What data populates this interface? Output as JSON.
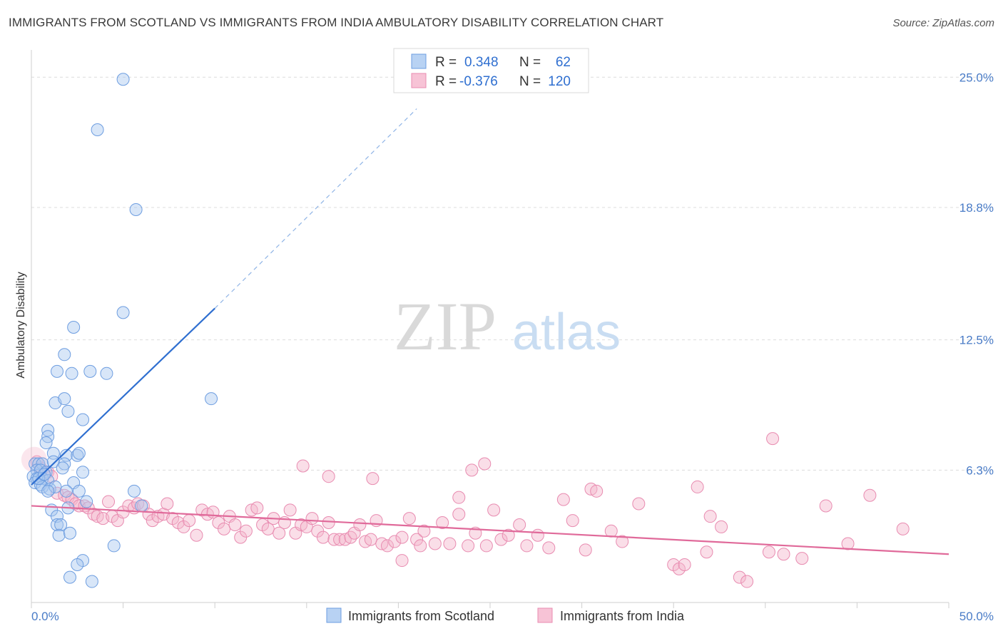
{
  "title": "IMMIGRANTS FROM SCOTLAND VS IMMIGRANTS FROM INDIA AMBULATORY DISABILITY CORRELATION CHART",
  "source": "Source: ZipAtlas.com",
  "watermark": {
    "zip": "ZIP",
    "atlas": "atlas"
  },
  "colors": {
    "scotland": "#5b8fd9",
    "scotland_fill": "#a9c8f0",
    "india": "#e06a9a",
    "india_fill": "#f4b6cc",
    "tick_text": "#4a7cc7"
  },
  "legend": {
    "r_label": "R =",
    "n_label": "N =",
    "scotland": {
      "r": "0.348",
      "n": "62"
    },
    "india": {
      "r": "-0.376",
      "n": "120"
    }
  },
  "chart_data": {
    "type": "scatter",
    "title": "IMMIGRANTS FROM SCOTLAND VS IMMIGRANTS FROM INDIA AMBULATORY DISABILITY CORRELATION CHART",
    "xlabel": "",
    "ylabel": "Ambulatory Disability",
    "xlim": [
      0,
      50
    ],
    "ylim": [
      0,
      26.3
    ],
    "x_tick_labels": [
      "0.0%",
      "50.0%"
    ],
    "y_ticks": [
      6.3,
      12.5,
      18.8,
      25.0
    ],
    "y_tick_labels": [
      "6.3%",
      "12.5%",
      "18.8%",
      "25.0%"
    ],
    "grid": true,
    "legend_position": "top-center",
    "series": [
      {
        "name": "Immigrants from Scotland",
        "color": "#5b8fd9",
        "trend": {
          "x": [
            0.0,
            10.0
          ],
          "y": [
            5.6,
            14.0
          ],
          "dashed_to": [
            21.0,
            23.5
          ]
        },
        "points": [
          [
            5.0,
            24.9
          ],
          [
            3.6,
            22.5
          ],
          [
            5.7,
            18.7
          ],
          [
            5.0,
            13.8
          ],
          [
            2.3,
            13.1
          ],
          [
            1.8,
            11.8
          ],
          [
            1.4,
            11.0
          ],
          [
            2.2,
            10.9
          ],
          [
            3.2,
            11.0
          ],
          [
            4.1,
            10.9
          ],
          [
            9.8,
            9.7
          ],
          [
            1.3,
            9.5
          ],
          [
            1.8,
            9.7
          ],
          [
            2.0,
            9.1
          ],
          [
            2.8,
            8.7
          ],
          [
            0.9,
            8.2
          ],
          [
            0.9,
            7.9
          ],
          [
            0.8,
            7.6
          ],
          [
            1.2,
            7.1
          ],
          [
            1.9,
            7.0
          ],
          [
            2.5,
            7.0
          ],
          [
            2.6,
            7.1
          ],
          [
            0.2,
            6.6
          ],
          [
            0.4,
            6.6
          ],
          [
            0.6,
            6.6
          ],
          [
            1.2,
            6.7
          ],
          [
            1.8,
            6.6
          ],
          [
            1.7,
            6.4
          ],
          [
            0.3,
            6.3
          ],
          [
            0.5,
            6.3
          ],
          [
            0.8,
            6.2
          ],
          [
            2.8,
            6.2
          ],
          [
            0.1,
            6.0
          ],
          [
            0.3,
            5.9
          ],
          [
            0.6,
            5.9
          ],
          [
            0.9,
            5.8
          ],
          [
            0.2,
            5.7
          ],
          [
            0.5,
            5.6
          ],
          [
            2.3,
            5.7
          ],
          [
            0.6,
            5.5
          ],
          [
            1.0,
            5.4
          ],
          [
            1.3,
            5.5
          ],
          [
            0.9,
            5.3
          ],
          [
            1.9,
            5.3
          ],
          [
            2.6,
            5.3
          ],
          [
            5.6,
            5.3
          ],
          [
            3.0,
            4.8
          ],
          [
            2.0,
            4.5
          ],
          [
            1.1,
            4.4
          ],
          [
            6.0,
            4.6
          ],
          [
            1.4,
            4.1
          ],
          [
            1.4,
            3.7
          ],
          [
            1.6,
            3.7
          ],
          [
            1.5,
            3.2
          ],
          [
            2.1,
            3.3
          ],
          [
            4.5,
            2.7
          ],
          [
            2.8,
            2.0
          ],
          [
            2.5,
            1.8
          ],
          [
            2.1,
            1.2
          ],
          [
            3.3,
            1.0
          ],
          [
            0.4,
            5.9
          ],
          [
            0.7,
            6.1
          ]
        ]
      },
      {
        "name": "Immigrants from India",
        "color": "#e06a9a",
        "trend": {
          "x": [
            0.0,
            50.0
          ],
          "y": [
            4.6,
            2.3
          ]
        },
        "points": [
          [
            0.3,
            6.7
          ],
          [
            0.5,
            6.4
          ],
          [
            0.9,
            6.2
          ],
          [
            1.1,
            6.0
          ],
          [
            1.4,
            5.2
          ],
          [
            1.8,
            5.1
          ],
          [
            2.0,
            5.0
          ],
          [
            2.2,
            4.9
          ],
          [
            2.4,
            4.7
          ],
          [
            2.6,
            4.6
          ],
          [
            2.9,
            4.6
          ],
          [
            3.1,
            4.5
          ],
          [
            3.4,
            4.2
          ],
          [
            3.6,
            4.1
          ],
          [
            3.9,
            4.0
          ],
          [
            4.2,
            4.8
          ],
          [
            4.4,
            4.1
          ],
          [
            4.7,
            3.9
          ],
          [
            5.0,
            4.3
          ],
          [
            5.3,
            4.6
          ],
          [
            5.6,
            4.5
          ],
          [
            5.8,
            4.7
          ],
          [
            6.1,
            4.6
          ],
          [
            6.4,
            4.2
          ],
          [
            6.6,
            3.9
          ],
          [
            6.9,
            4.1
          ],
          [
            7.2,
            4.2
          ],
          [
            7.4,
            4.7
          ],
          [
            7.7,
            4.0
          ],
          [
            8.0,
            3.8
          ],
          [
            8.3,
            3.6
          ],
          [
            8.6,
            3.9
          ],
          [
            9.0,
            3.2
          ],
          [
            9.3,
            4.4
          ],
          [
            9.6,
            4.2
          ],
          [
            9.9,
            4.3
          ],
          [
            10.2,
            3.8
          ],
          [
            10.5,
            3.5
          ],
          [
            10.8,
            4.1
          ],
          [
            11.1,
            3.7
          ],
          [
            11.4,
            3.1
          ],
          [
            11.7,
            3.4
          ],
          [
            12.0,
            4.4
          ],
          [
            12.3,
            4.5
          ],
          [
            12.6,
            3.7
          ],
          [
            12.9,
            3.5
          ],
          [
            13.2,
            4.0
          ],
          [
            13.5,
            3.3
          ],
          [
            13.8,
            3.8
          ],
          [
            14.1,
            4.4
          ],
          [
            14.4,
            3.3
          ],
          [
            14.7,
            3.7
          ],
          [
            15.0,
            3.6
          ],
          [
            15.3,
            4.0
          ],
          [
            15.6,
            3.4
          ],
          [
            15.9,
            3.1
          ],
          [
            16.2,
            3.8
          ],
          [
            16.5,
            3.0
          ],
          [
            16.8,
            3.0
          ],
          [
            17.1,
            3.0
          ],
          [
            17.4,
            3.1
          ],
          [
            17.6,
            3.3
          ],
          [
            17.9,
            3.7
          ],
          [
            18.2,
            2.9
          ],
          [
            18.5,
            3.0
          ],
          [
            18.8,
            3.9
          ],
          [
            19.1,
            2.8
          ],
          [
            19.4,
            2.7
          ],
          [
            19.8,
            2.9
          ],
          [
            20.2,
            3.1
          ],
          [
            20.6,
            4.0
          ],
          [
            21.0,
            3.0
          ],
          [
            21.4,
            3.4
          ],
          [
            22.0,
            2.8
          ],
          [
            22.4,
            3.8
          ],
          [
            22.8,
            2.8
          ],
          [
            23.3,
            4.2
          ],
          [
            23.8,
            2.7
          ],
          [
            24.2,
            3.3
          ],
          [
            24.8,
            2.7
          ],
          [
            25.2,
            4.4
          ],
          [
            25.6,
            3.0
          ],
          [
            26.0,
            3.2
          ],
          [
            26.6,
            3.7
          ],
          [
            27.0,
            2.7
          ],
          [
            27.6,
            3.2
          ],
          [
            28.2,
            2.6
          ],
          [
            14.8,
            6.5
          ],
          [
            16.2,
            6.0
          ],
          [
            18.6,
            5.9
          ],
          [
            24.0,
            6.3
          ],
          [
            24.7,
            6.6
          ],
          [
            23.3,
            5.0
          ],
          [
            20.2,
            2.0
          ],
          [
            21.2,
            2.7
          ],
          [
            29.0,
            4.9
          ],
          [
            29.5,
            3.9
          ],
          [
            30.2,
            2.5
          ],
          [
            30.5,
            5.4
          ],
          [
            30.8,
            5.3
          ],
          [
            31.6,
            3.4
          ],
          [
            32.2,
            2.9
          ],
          [
            33.1,
            4.7
          ],
          [
            35.0,
            1.8
          ],
          [
            35.3,
            1.6
          ],
          [
            35.6,
            1.8
          ],
          [
            36.3,
            5.5
          ],
          [
            36.8,
            2.4
          ],
          [
            37.0,
            4.1
          ],
          [
            37.6,
            3.6
          ],
          [
            38.6,
            1.2
          ],
          [
            39.0,
            1.0
          ],
          [
            40.2,
            2.4
          ],
          [
            41.0,
            2.3
          ],
          [
            42.0,
            2.1
          ],
          [
            43.3,
            4.6
          ],
          [
            44.5,
            2.8
          ],
          [
            45.7,
            5.1
          ],
          [
            47.5,
            3.5
          ],
          [
            40.4,
            7.8
          ]
        ]
      }
    ]
  },
  "bottom_legend": [
    {
      "label": "Immigrants from Scotland"
    },
    {
      "label": "Immigrants from India"
    }
  ]
}
